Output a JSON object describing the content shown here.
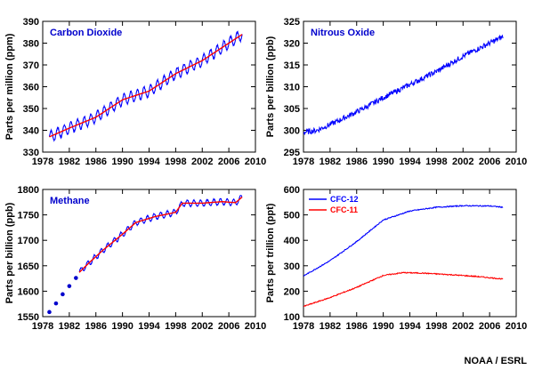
{
  "credit": "NOAA / ESRL",
  "chart_data": [
    {
      "type": "line",
      "title": "Carbon Dioxide",
      "xlabel": "",
      "ylabel": "Parts per million (ppm)",
      "xlim": [
        1978,
        2010
      ],
      "ylim": [
        330,
        390
      ],
      "xticks": [
        "1978",
        "1982",
        "1986",
        "1990",
        "1994",
        "1998",
        "2002",
        "2006",
        "2010"
      ],
      "yticks": [
        "330",
        "340",
        "350",
        "360",
        "370",
        "380",
        "390"
      ],
      "title_color": "#0000cc",
      "seasonal_amplitude": 2.5,
      "series": [
        {
          "color": "#0000ff",
          "style": "monthly",
          "x": [
            1979,
            1982,
            1986,
            1990,
            1994,
            1998,
            2002,
            2006,
            2008
          ],
          "y": [
            337,
            341,
            346,
            354,
            358,
            366,
            372,
            380,
            384
          ]
        },
        {
          "color": "#ff0000",
          "style": "trend",
          "x": [
            1979,
            1982,
            1986,
            1990,
            1994,
            1998,
            2002,
            2006,
            2008
          ],
          "y": [
            337,
            341,
            346,
            354,
            358,
            366,
            372,
            380,
            384
          ]
        }
      ]
    },
    {
      "type": "line",
      "title": "Nitrous Oxide",
      "xlabel": "",
      "ylabel": "Parts per billion (ppb)",
      "xlim": [
        1978,
        2010
      ],
      "ylim": [
        295,
        325
      ],
      "xticks": [
        "1978",
        "1982",
        "1986",
        "1990",
        "1994",
        "1998",
        "2002",
        "2006",
        "2010"
      ],
      "yticks": [
        "295",
        "300",
        "305",
        "310",
        "315",
        "320",
        "325"
      ],
      "title_color": "#0000cc",
      "noise": 0.6,
      "series": [
        {
          "color": "#0000ff",
          "style": "noisy",
          "x": [
            1978,
            1980,
            1983,
            1985,
            1987,
            1990,
            1994,
            1998,
            2002,
            2006,
            2008
          ],
          "y": [
            299.5,
            300,
            302,
            303.5,
            305,
            307.5,
            310.5,
            313.5,
            317,
            320,
            321.5
          ]
        }
      ]
    },
    {
      "type": "line",
      "title": "Methane",
      "xlabel": "",
      "ylabel": "Parts per billion (ppb)",
      "xlim": [
        1978,
        2010
      ],
      "ylim": [
        1550,
        1800
      ],
      "xticks": [
        "1978",
        "1982",
        "1986",
        "1990",
        "1994",
        "1998",
        "2002",
        "2006",
        "2010"
      ],
      "yticks": [
        "1550",
        "1600",
        "1650",
        "1700",
        "1750",
        "1800"
      ],
      "title_color": "#0000cc",
      "seasonal_amplitude": 6,
      "points": {
        "color": "#0000cc",
        "x": [
          1979,
          1980,
          1981,
          1982,
          1983
        ],
        "y": [
          1559,
          1576,
          1594,
          1610,
          1626
        ]
      },
      "series": [
        {
          "color": "#0000ff",
          "style": "monthly",
          "x": [
            1983.5,
            1985,
            1987,
            1990,
            1992,
            1995,
            1998,
            1999,
            2002,
            2005,
            2007,
            2008
          ],
          "y": [
            1637,
            1656,
            1680,
            1712,
            1735,
            1747,
            1755,
            1773,
            1773,
            1776,
            1774,
            1785
          ]
        },
        {
          "color": "#ff0000",
          "style": "trend",
          "x": [
            1983.5,
            1985,
            1987,
            1990,
            1992,
            1995,
            1998,
            1999,
            2002,
            2005,
            2007,
            2008
          ],
          "y": [
            1637,
            1656,
            1680,
            1712,
            1735,
            1747,
            1755,
            1773,
            1773,
            1776,
            1774,
            1785
          ]
        }
      ]
    },
    {
      "type": "line",
      "title": "",
      "xlabel": "",
      "ylabel": "Parts per trillion (ppt)",
      "xlim": [
        1978,
        2010
      ],
      "ylim": [
        100,
        600
      ],
      "xticks": [
        "1978",
        "1982",
        "1986",
        "1990",
        "1994",
        "1998",
        "2002",
        "2006",
        "2010"
      ],
      "yticks": [
        "100",
        "200",
        "300",
        "400",
        "500",
        "600"
      ],
      "legend": "top-left",
      "noise": 2,
      "series": [
        {
          "name": "CFC-12",
          "color": "#0000ff",
          "style": "noisy",
          "x": [
            1978,
            1982,
            1986,
            1990,
            1994,
            1998,
            2002,
            2006,
            2008
          ],
          "y": [
            260,
            320,
            395,
            480,
            515,
            530,
            536,
            535,
            530
          ]
        },
        {
          "name": "CFC-11",
          "color": "#ff0000",
          "style": "noisy",
          "x": [
            1978,
            1982,
            1986,
            1990,
            1993,
            1996,
            2000,
            2004,
            2008
          ],
          "y": [
            140,
            175,
            215,
            262,
            273,
            271,
            265,
            258,
            248
          ]
        }
      ]
    }
  ]
}
